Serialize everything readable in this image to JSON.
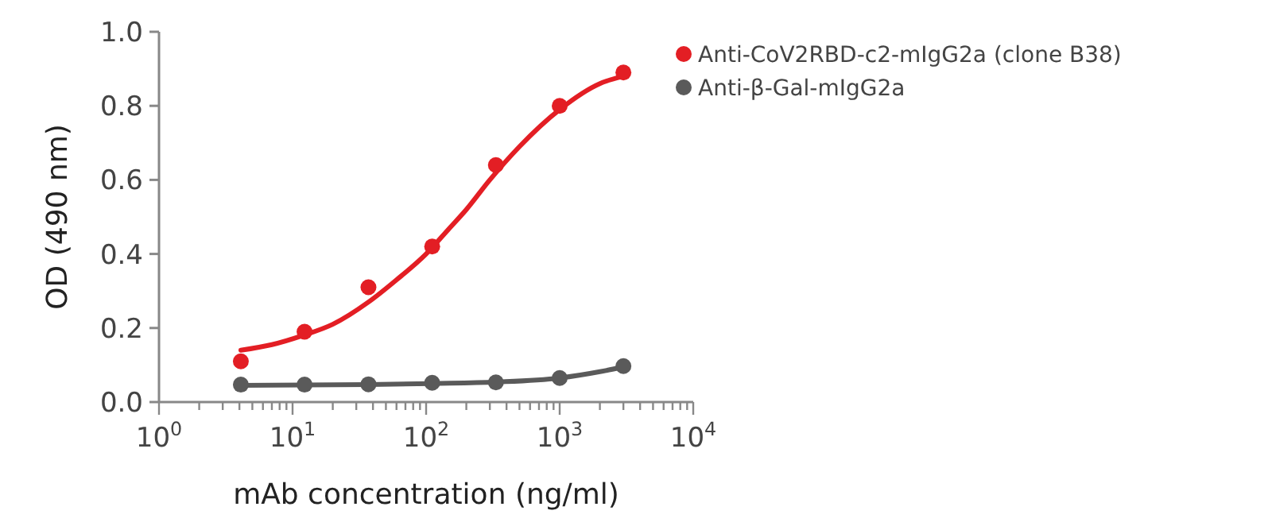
{
  "chart_data": {
    "type": "scatter",
    "xlabel": "mAb concentration (ng/ml)",
    "ylabel": "OD (490 nm)",
    "log": "x",
    "xlim": [
      1,
      10000
    ],
    "ylim": [
      0,
      1
    ],
    "xticks": [
      {
        "value": 1,
        "label": "10$^{0}$"
      },
      {
        "value": 2,
        "label": null
      },
      {
        "value": 3,
        "label": null
      },
      {
        "value": 4,
        "label": null
      },
      {
        "value": 5,
        "label": null
      },
      {
        "value": 6,
        "label": null
      },
      {
        "value": 7,
        "label": null
      },
      {
        "value": 8,
        "label": null
      },
      {
        "value": 9,
        "label": null
      },
      {
        "value": 10,
        "label": "10$^{1}$"
      },
      {
        "value": 20,
        "label": null
      },
      {
        "value": 30,
        "label": null
      },
      {
        "value": 40,
        "label": null
      },
      {
        "value": 50,
        "label": null
      },
      {
        "value": 60,
        "label": null
      },
      {
        "value": 70,
        "label": null
      },
      {
        "value": 80,
        "label": null
      },
      {
        "value": 90,
        "label": null
      },
      {
        "value": 100,
        "label": "10$^{2}$"
      },
      {
        "value": 200,
        "label": null
      },
      {
        "value": 300,
        "label": null
      },
      {
        "value": 400,
        "label": null
      },
      {
        "value": 500,
        "label": null
      },
      {
        "value": 600,
        "label": null
      },
      {
        "value": 700,
        "label": null
      },
      {
        "value": 800,
        "label": null
      },
      {
        "value": 900,
        "label": null
      },
      {
        "value": 1000,
        "label": "10$^{3}$"
      },
      {
        "value": 2000,
        "label": null
      },
      {
        "value": 3000,
        "label": null
      },
      {
        "value": 4000,
        "label": null
      },
      {
        "value": 5000,
        "label": null
      },
      {
        "value": 6000,
        "label": null
      },
      {
        "value": 7000,
        "label": null
      },
      {
        "value": 8000,
        "label": null
      },
      {
        "value": 9000,
        "label": null
      },
      {
        "value": 10000,
        "label": "10$^{4}$"
      }
    ],
    "yticks": [
      {
        "value": 0,
        "label": "0.0"
      },
      {
        "value": 0.2,
        "label": "0.2"
      },
      {
        "value": 0.4,
        "label": "0.4"
      },
      {
        "value": 0.6,
        "label": "0.6"
      },
      {
        "value": 0.8,
        "label": "0.8"
      },
      {
        "value": 1,
        "label": "1.0"
      }
    ],
    "grid": false,
    "legend": "right",
    "marker": "circle",
    "series": [
      {
        "name": "Anti-CoV2RBD-c2-mIgG2a (clone B38)",
        "color": "#e31e24",
        "x": [
          4.1,
          12.3,
          37,
          111,
          333,
          1000,
          3000
        ],
        "values": [
          0.11,
          0.19,
          0.31,
          0.42,
          0.64,
          0.8,
          0.89
        ]
      },
      {
        "name": "Anti-β-Gal-mIgG2a",
        "color": "#5a5a5a",
        "x": [
          4.1,
          12.3,
          37,
          111,
          333,
          1000,
          3000
        ],
        "values": [
          0.047,
          0.047,
          0.048,
          0.052,
          0.053,
          0.065,
          0.097
        ]
      },
      {
        "type": "line",
        "marker": "none",
        "color": "#e31e24",
        "x": [
          4.1,
          7,
          12,
          20,
          37,
          60,
          100,
          150,
          200,
          300,
          500,
          1000,
          2000,
          3000
        ],
        "values": [
          0.14,
          0.155,
          0.18,
          0.21,
          0.27,
          0.33,
          0.4,
          0.47,
          0.52,
          0.6,
          0.69,
          0.79,
          0.86,
          0.88
        ]
      },
      {
        "type": "line",
        "marker": "none",
        "color": "#5a5a5a",
        "x": [
          4.1,
          12.3,
          37,
          111,
          333,
          1000,
          2000,
          3000
        ],
        "values": [
          0.045,
          0.046,
          0.047,
          0.05,
          0.054,
          0.065,
          0.082,
          0.095
        ]
      }
    ]
  }
}
